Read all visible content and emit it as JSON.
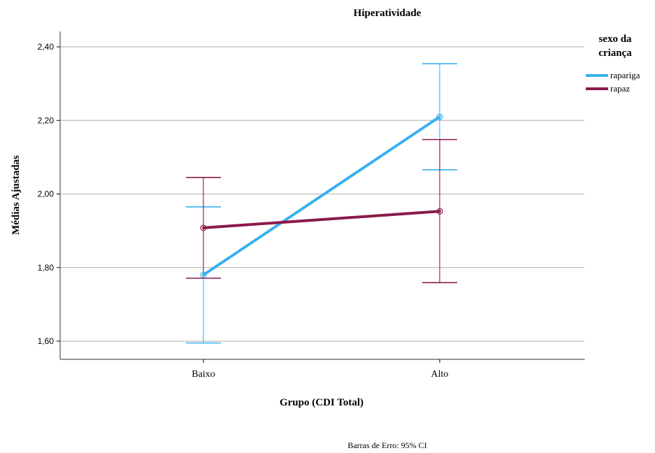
{
  "chart_data": {
    "type": "line",
    "title": "Hiperatividade",
    "xlabel": "Grupo (CDI Total)",
    "ylabel": "Médias Ajustadas",
    "categories": [
      "Baixo",
      "Alto"
    ],
    "ylim": [
      1.56,
      2.44
    ],
    "yticks": [
      {
        "value": 1.6,
        "label": "1,60"
      },
      {
        "value": 1.8,
        "label": "1,80"
      },
      {
        "value": 2.0,
        "label": "2,00"
      },
      {
        "value": 2.2,
        "label": "2,20"
      },
      {
        "value": 2.4,
        "label": "2,40"
      }
    ],
    "grid": true,
    "legend": {
      "title": "sexo da criança",
      "position": "top-right"
    },
    "series": [
      {
        "name": "rapariga",
        "color": "#3ab0f0",
        "values": [
          1.78,
          2.21
        ],
        "ci_low": [
          1.595,
          2.066
        ],
        "ci_high": [
          1.965,
          2.354
        ]
      },
      {
        "name": "rapaz",
        "color": "#8b1a4a",
        "values": [
          1.908,
          1.953
        ],
        "ci_low": [
          1.771,
          1.759
        ],
        "ci_high": [
          2.045,
          2.148
        ]
      }
    ],
    "footnote": "Barras de Erro: 95% CI"
  }
}
